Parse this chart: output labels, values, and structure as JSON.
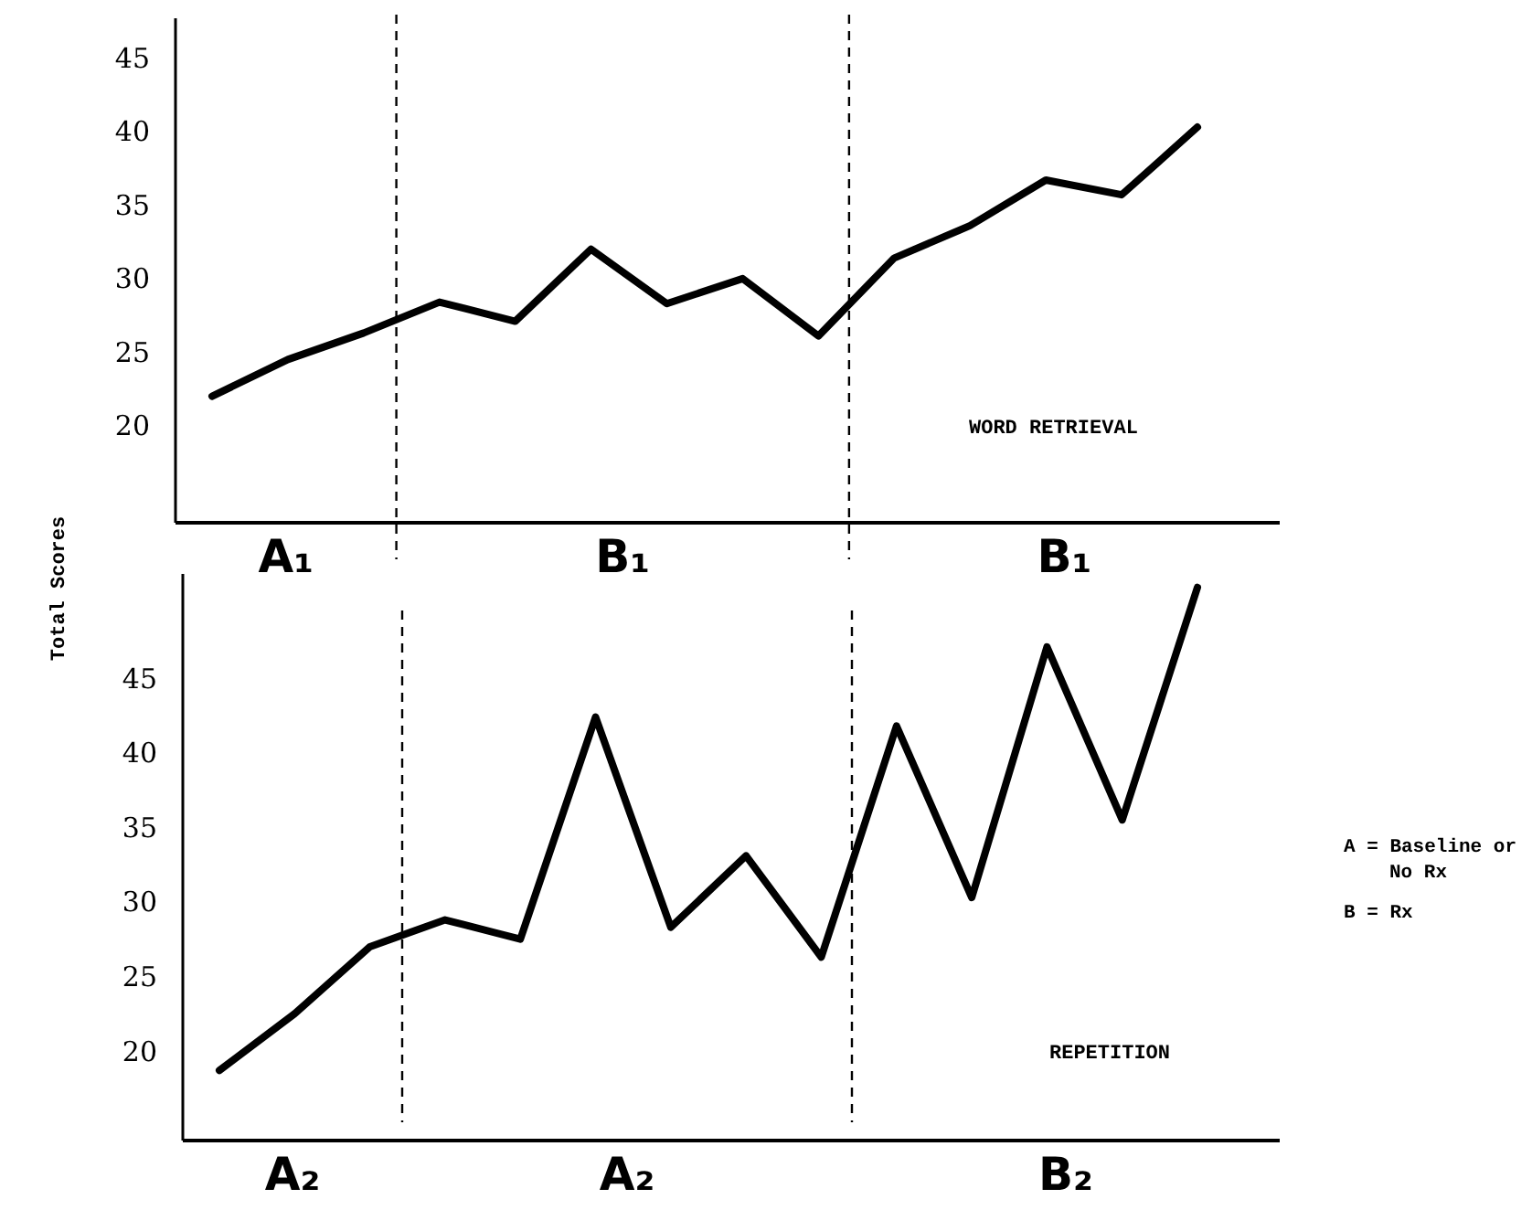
{
  "chart_data": [
    {
      "type": "line",
      "title": "WORD RETRIEVAL",
      "ylabel": "Total Scores",
      "categories": [
        null,
        null,
        null,
        null,
        null,
        null,
        null,
        null,
        null,
        null,
        null,
        null,
        null,
        null
      ],
      "ylim": [
        13.4,
        47.7
      ],
      "yticks": [
        20,
        25,
        30,
        35,
        40,
        45
      ],
      "tick_labels": "y",
      "grid": false,
      "marker": "none",
      "line_style": "solid",
      "series": [
        {
          "color": "#000000",
          "values": [
            22.0,
            24.5,
            26.3,
            28.4,
            27.1,
            32.0,
            28.3,
            30.0,
            26.1,
            31.4,
            33.6,
            36.7,
            35.7,
            40.3
          ]
        }
      ],
      "annotations": [
        "A₁",
        "B₁",
        "B₁"
      ]
    },
    {
      "type": "line",
      "title": "REPETITION",
      "categories": [
        null,
        null,
        null,
        null,
        null,
        null,
        null,
        null,
        null,
        null,
        null,
        null,
        null,
        null
      ],
      "ylim": [
        14,
        52
      ],
      "yticks": [
        20,
        25,
        30,
        35,
        40,
        45
      ],
      "tick_labels": "y",
      "grid": false,
      "marker": "none",
      "line_style": "solid",
      "series": [
        {
          "color": "#000000",
          "values": [
            18.7,
            22.5,
            27.0,
            28.8,
            27.5,
            42.4,
            28.3,
            33.1,
            26.3,
            41.8,
            30.3,
            47.1,
            35.5,
            51.1
          ]
        }
      ],
      "annotations": [
        "A₂",
        "A₂",
        "B₂",
        "A = Baseline or No Rx",
        "B = Rx"
      ]
    }
  ]
}
